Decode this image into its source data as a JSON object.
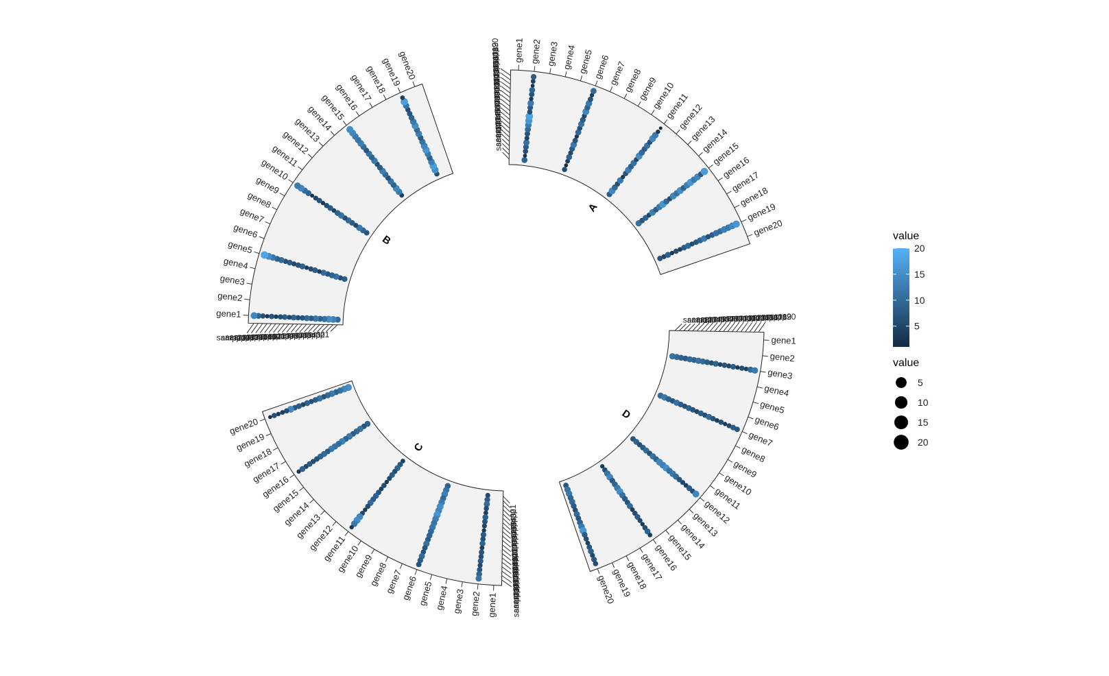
{
  "chart_data": {
    "type": "scatter",
    "layout": "circular-faceted",
    "facets": [
      {
        "name": "A",
        "genes": [
          "gene1",
          "gene2",
          "gene3",
          "gene4",
          "gene5",
          "gene6",
          "gene7",
          "gene8",
          "gene9",
          "gene10",
          "gene11",
          "gene12",
          "gene13",
          "gene14",
          "gene15",
          "gene16",
          "gene17",
          "gene18",
          "gene19",
          "gene20"
        ],
        "samples": [
          "samp1",
          "samp2",
          "samp3",
          "samp4",
          "samp5",
          "samp6",
          "samp7",
          "samp8",
          "samp9",
          "samp10",
          "samp11",
          "samp12",
          "samp13",
          "samp14",
          "samp15",
          "samp16",
          "samp17",
          "samp18",
          "samp19",
          "samp20"
        ],
        "series": [
          {
            "gene": "gene2",
            "values": [
              9,
              2,
              6,
              8,
              11,
              5,
              7,
              10,
              12,
              16,
              18,
              6,
              8,
              12,
              3,
              7,
              9,
              2,
              4,
              8
            ]
          },
          {
            "gene": "gene6",
            "values": [
              6,
              2,
              4,
              9,
              5,
              8,
              12,
              7,
              3,
              10,
              6,
              11,
              8,
              5,
              14,
              9,
              12,
              7,
              3,
              10
            ]
          },
          {
            "gene": "gene11",
            "values": [
              8,
              14,
              10,
              6,
              12,
              3,
              7,
              13,
              9,
              11,
              5,
              15,
              10,
              8,
              11,
              6,
              14,
              12,
              3,
              1
            ]
          },
          {
            "gene": "gene15",
            "values": [
              11,
              7,
              9,
              5,
              13,
              8,
              12,
              16,
              10,
              6,
              14,
              11,
              15,
              9,
              13,
              16,
              12,
              14,
              8,
              17
            ]
          },
          {
            "gene": "gene19",
            "values": [
              7,
              5,
              9,
              3,
              6,
              4,
              8,
              10,
              5,
              7,
              9,
              12,
              6,
              8,
              11,
              10,
              13,
              12,
              14,
              16
            ]
          }
        ]
      },
      {
        "name": "B",
        "genes": [
          "gene1",
          "gene2",
          "gene3",
          "gene4",
          "gene5",
          "gene6",
          "gene7",
          "gene8",
          "gene9",
          "gene10",
          "gene11",
          "gene12",
          "gene13",
          "gene14",
          "gene15",
          "gene16",
          "gene17",
          "gene18",
          "gene19",
          "gene20"
        ],
        "samples": [
          "samp1",
          "samp2",
          "samp3",
          "samp4",
          "samp5",
          "samp6",
          "samp7",
          "samp8",
          "samp9",
          "samp10",
          "samp11",
          "samp12",
          "samp13",
          "samp14",
          "samp15",
          "samp16",
          "samp17",
          "samp18",
          "samp19",
          "samp20"
        ],
        "series": [
          {
            "gene": "gene1",
            "values": [
              10,
              13,
              15,
              11,
              9,
              12,
              8,
              10,
              7,
              6,
              9,
              5,
              8,
              6,
              4,
              7,
              3,
              6,
              9,
              14
            ]
          },
          {
            "gene": "gene5",
            "values": [
              8,
              6,
              11,
              9,
              7,
              10,
              4,
              8,
              6,
              3,
              9,
              7,
              5,
              8,
              6,
              10,
              9,
              12,
              15,
              18
            ]
          },
          {
            "gene": "gene10",
            "values": [
              7,
              9,
              12,
              5,
              8,
              10,
              6,
              11,
              9,
              4,
              8,
              6,
              3,
              7,
              5,
              2,
              9,
              10,
              14,
              12
            ]
          },
          {
            "gene": "gene15",
            "values": [
              4,
              12,
              14,
              9,
              11,
              7,
              10,
              13,
              8,
              6,
              12,
              9,
              11,
              7,
              10,
              13,
              11,
              12,
              14,
              15
            ]
          },
          {
            "gene": "gene19",
            "values": [
              6,
              15,
              17,
              13,
              9,
              12,
              16,
              14,
              11,
              8,
              13,
              10,
              15,
              12,
              9,
              7,
              6,
              11,
              17,
              4
            ]
          }
        ]
      },
      {
        "name": "C",
        "genes": [
          "gene1",
          "gene2",
          "gene3",
          "gene4",
          "gene5",
          "gene6",
          "gene7",
          "gene8",
          "gene9",
          "gene10",
          "gene11",
          "gene12",
          "gene13",
          "gene14",
          "gene15",
          "gene16",
          "gene17",
          "gene18",
          "gene19",
          "gene20"
        ],
        "samples": [
          "samp1",
          "samp2",
          "samp3",
          "samp4",
          "samp5",
          "samp6",
          "samp7",
          "samp8",
          "samp9",
          "samp10",
          "samp11",
          "samp12",
          "samp13",
          "samp14",
          "samp15",
          "samp16",
          "samp17",
          "samp18",
          "samp19",
          "samp20"
        ],
        "series": [
          {
            "gene": "gene2",
            "values": [
              5,
              8,
              10,
              6,
              4,
              9,
              7,
              5,
              3,
              8,
              6,
              9,
              4,
              7,
              6,
              8,
              5,
              7,
              9,
              11
            ]
          },
          {
            "gene": "gene6",
            "values": [
              9,
              11,
              13,
              10,
              12,
              15,
              14,
              16,
              13,
              11,
              12,
              10,
              9,
              8,
              11,
              7,
              6,
              10,
              8,
              7
            ]
          },
          {
            "gene": "gene11",
            "values": [
              4,
              7,
              9,
              6,
              8,
              5,
              3,
              6,
              4,
              7,
              9,
              8,
              10,
              6,
              3,
              5,
              14,
              15,
              12,
              3
            ]
          },
          {
            "gene": "gene16",
            "values": [
              9,
              7,
              11,
              10,
              8,
              12,
              9,
              13,
              10,
              11,
              12,
              8,
              10,
              9,
              7,
              6,
              8,
              5,
              9,
              3
            ]
          },
          {
            "gene": "gene20",
            "values": [
              15,
              14,
              11,
              9,
              12,
              10,
              7,
              11,
              8,
              6,
              9,
              5,
              8,
              7,
              14,
              6,
              4,
              3,
              6,
              2
            ]
          }
        ]
      },
      {
        "name": "D",
        "genes": [
          "gene1",
          "gene2",
          "gene3",
          "gene4",
          "gene5",
          "gene6",
          "gene7",
          "gene8",
          "gene9",
          "gene10",
          "gene11",
          "gene12",
          "gene13",
          "gene14",
          "gene15",
          "gene16",
          "gene17",
          "gene18",
          "gene19",
          "gene20"
        ],
        "samples": [
          "samp1",
          "samp2",
          "samp3",
          "samp4",
          "samp5",
          "samp6",
          "samp7",
          "samp8",
          "samp9",
          "samp10",
          "samp11",
          "samp12",
          "samp13",
          "samp14",
          "samp15",
          "samp16",
          "samp17",
          "samp18",
          "samp19",
          "samp20"
        ],
        "series": [
          {
            "gene": "gene3",
            "values": [
              11,
              10,
              9,
              8,
              10,
              9,
              11,
              10,
              8,
              6,
              9,
              4,
              7,
              5,
              8,
              3,
              6,
              4,
              10,
              12
            ]
          },
          {
            "gene": "gene7",
            "values": [
              10,
              12,
              9,
              7,
              11,
              8,
              6,
              9,
              7,
              5,
              8,
              6,
              10,
              7,
              4,
              6,
              3,
              5,
              8,
              7
            ]
          },
          {
            "gene": "gene12",
            "values": [
              7,
              9,
              6,
              8,
              10,
              7,
              11,
              9,
              14,
              13,
              15,
              11,
              12,
              10,
              7,
              5,
              4,
              8,
              6,
              14
            ]
          },
          {
            "gene": "gene16",
            "values": [
              3,
              6,
              11,
              14,
              8,
              9,
              12,
              15,
              11,
              8,
              7,
              10,
              4,
              6,
              8,
              5,
              3,
              6,
              9,
              4
            ]
          },
          {
            "gene": "gene20",
            "values": [
              7,
              11,
              12,
              9,
              10,
              8,
              6,
              10,
              7,
              9,
              12,
              16,
              8,
              6,
              4,
              7,
              9,
              5,
              8,
              6
            ]
          }
        ]
      }
    ],
    "legend": [
      {
        "title": "value",
        "kind": "colorbar",
        "ticks": [
          "5",
          "10",
          "15",
          "20"
        ],
        "low_color": "#132B43",
        "high_color": "#56B1F7"
      },
      {
        "title": "value",
        "kind": "size",
        "entries": [
          "5",
          "10",
          "15",
          "20"
        ]
      }
    ],
    "panel_color": "#f2f2f2",
    "legend_placement": "right"
  }
}
